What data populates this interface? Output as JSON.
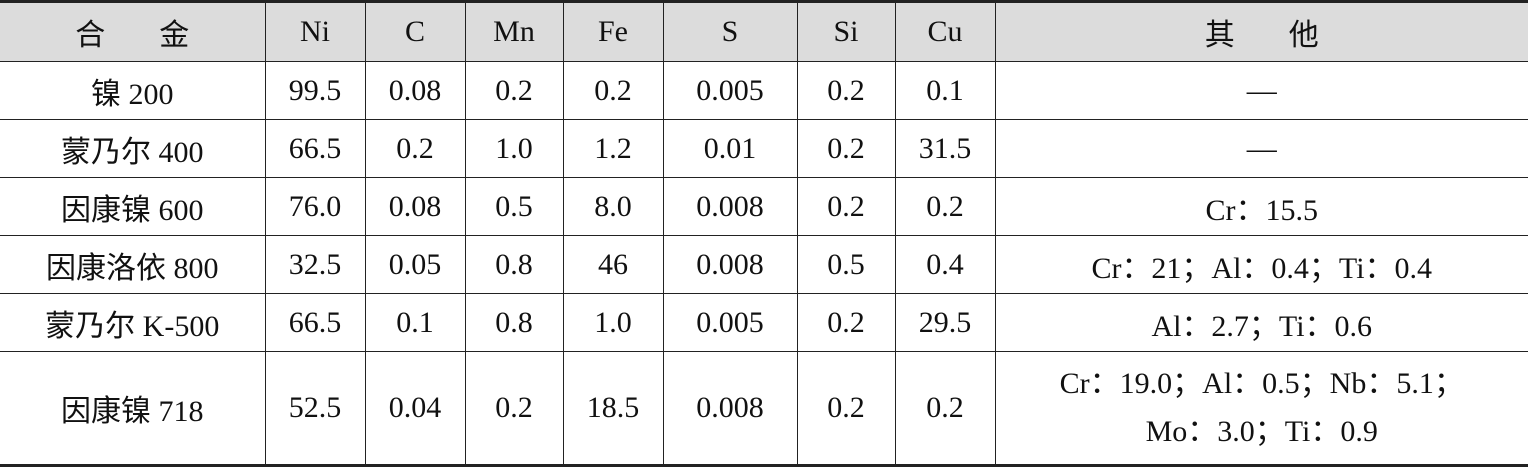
{
  "table": {
    "header": [
      "合金",
      "Ni",
      "C",
      "Mn",
      "Fe",
      "S",
      "Si",
      "Cu",
      "其他"
    ],
    "rows": [
      [
        "镍 200",
        "99.5",
        "0.08",
        "0.2",
        "0.2",
        "0.005",
        "0.2",
        "0.1",
        "—"
      ],
      [
        "蒙乃尔 400",
        "66.5",
        "0.2",
        "1.0",
        "1.2",
        "0.01",
        "0.2",
        "31.5",
        "—"
      ],
      [
        "因康镍 600",
        "76.0",
        "0.08",
        "0.5",
        "8.0",
        "0.008",
        "0.2",
        "0.2",
        "Cr：15.5"
      ],
      [
        "因康洛依 800",
        "32.5",
        "0.05",
        "0.8",
        "46",
        "0.008",
        "0.5",
        "0.4",
        "Cr：21；Al：0.4；Ti：0.4"
      ],
      [
        "蒙乃尔 K-500",
        "66.5",
        "0.1",
        "0.8",
        "1.0",
        "0.005",
        "0.2",
        "29.5",
        "Al：2.7；Ti：0.6"
      ],
      [
        "因康镍 718",
        "52.5",
        "0.04",
        "0.2",
        "18.5",
        "0.008",
        "0.2",
        "0.2",
        [
          "Cr：19.0；Al：0.5；Nb：5.1；",
          "Mo：3.0；Ti：0.9"
        ]
      ]
    ]
  }
}
